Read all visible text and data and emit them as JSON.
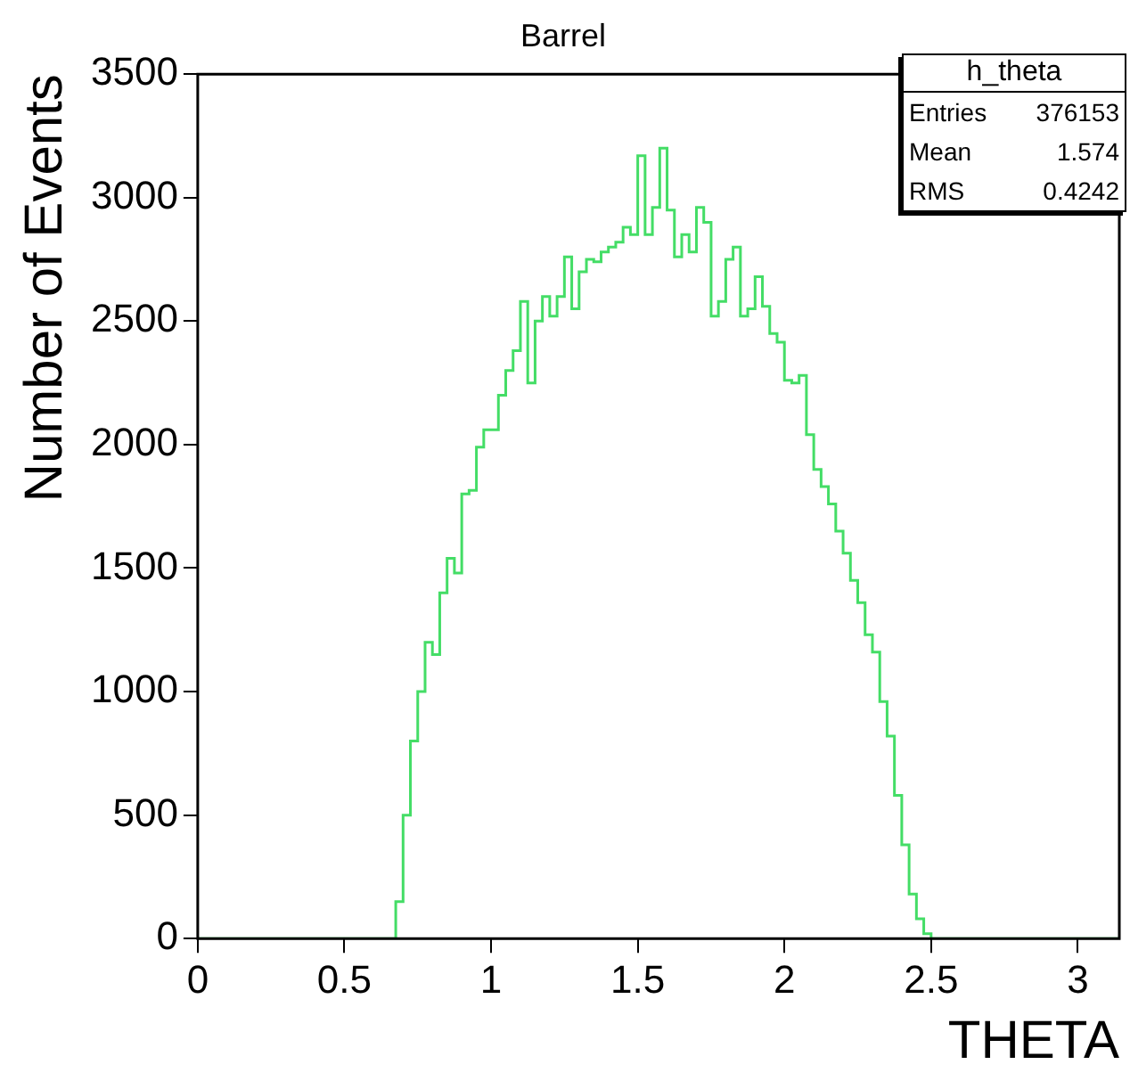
{
  "chart_data": {
    "type": "histogram",
    "title": "Barrel",
    "xlabel": "THETA",
    "ylabel": "Number of Events",
    "bins": [
      0,
      0.675,
      0.7,
      0.725,
      0.75,
      0.775,
      0.8,
      0.825,
      0.85,
      0.875,
      0.9,
      0.925,
      0.95,
      0.975,
      1,
      1.025,
      1.05,
      1.075,
      1.1,
      1.125,
      1.15,
      1.175,
      1.2,
      1.225,
      1.25,
      1.275,
      1.3,
      1.325,
      1.35,
      1.375,
      1.4,
      1.425,
      1.45,
      1.475,
      1.5,
      1.525,
      1.55,
      1.575,
      1.6,
      1.625,
      1.65,
      1.675,
      1.7,
      1.725,
      1.75,
      1.775,
      1.8,
      1.825,
      1.85,
      1.875,
      1.9,
      1.925,
      1.95,
      1.975,
      2,
      2.025,
      2.05,
      2.075,
      2.1,
      2.125,
      2.15,
      2.175,
      2.2,
      2.225,
      2.25,
      2.275,
      2.3,
      2.325,
      2.35,
      2.375,
      2.4,
      2.425,
      2.45,
      2.475,
      2.5,
      3.1416
    ],
    "values": [
      0,
      150,
      500,
      800,
      1000,
      1200,
      1150,
      1400,
      1540,
      1480,
      1800,
      1815,
      1990,
      2060,
      2060,
      2200,
      2300,
      2380,
      2580,
      2250,
      2500,
      2600,
      2520,
      2600,
      2760,
      2550,
      2700,
      2750,
      2740,
      2780,
      2800,
      2820,
      2880,
      2850,
      3170,
      2850,
      2960,
      3200,
      2950,
      2760,
      2850,
      2780,
      2960,
      2900,
      2520,
      2580,
      2750,
      2800,
      2520,
      2550,
      2680,
      2560,
      2450,
      2415,
      2260,
      2250,
      2280,
      2040,
      1900,
      1830,
      1760,
      1650,
      1560,
      1450,
      1360,
      1230,
      1160,
      960,
      820,
      580,
      380,
      180,
      80,
      20,
      0
    ],
    "color": "#44dd66",
    "xlim": [
      0,
      3.1416
    ],
    "xticks": [
      0,
      0.5,
      1,
      1.5,
      2,
      2.5,
      3
    ],
    "ylim": [
      0,
      3500
    ],
    "yticks": [
      0,
      500,
      1000,
      1500,
      2000,
      2500,
      3000,
      3500
    ],
    "grid": false,
    "legend": false,
    "annotations": [
      "h_theta",
      "Entries",
      "376153",
      "Mean",
      "1.574",
      "RMS",
      "0.4242"
    ]
  }
}
